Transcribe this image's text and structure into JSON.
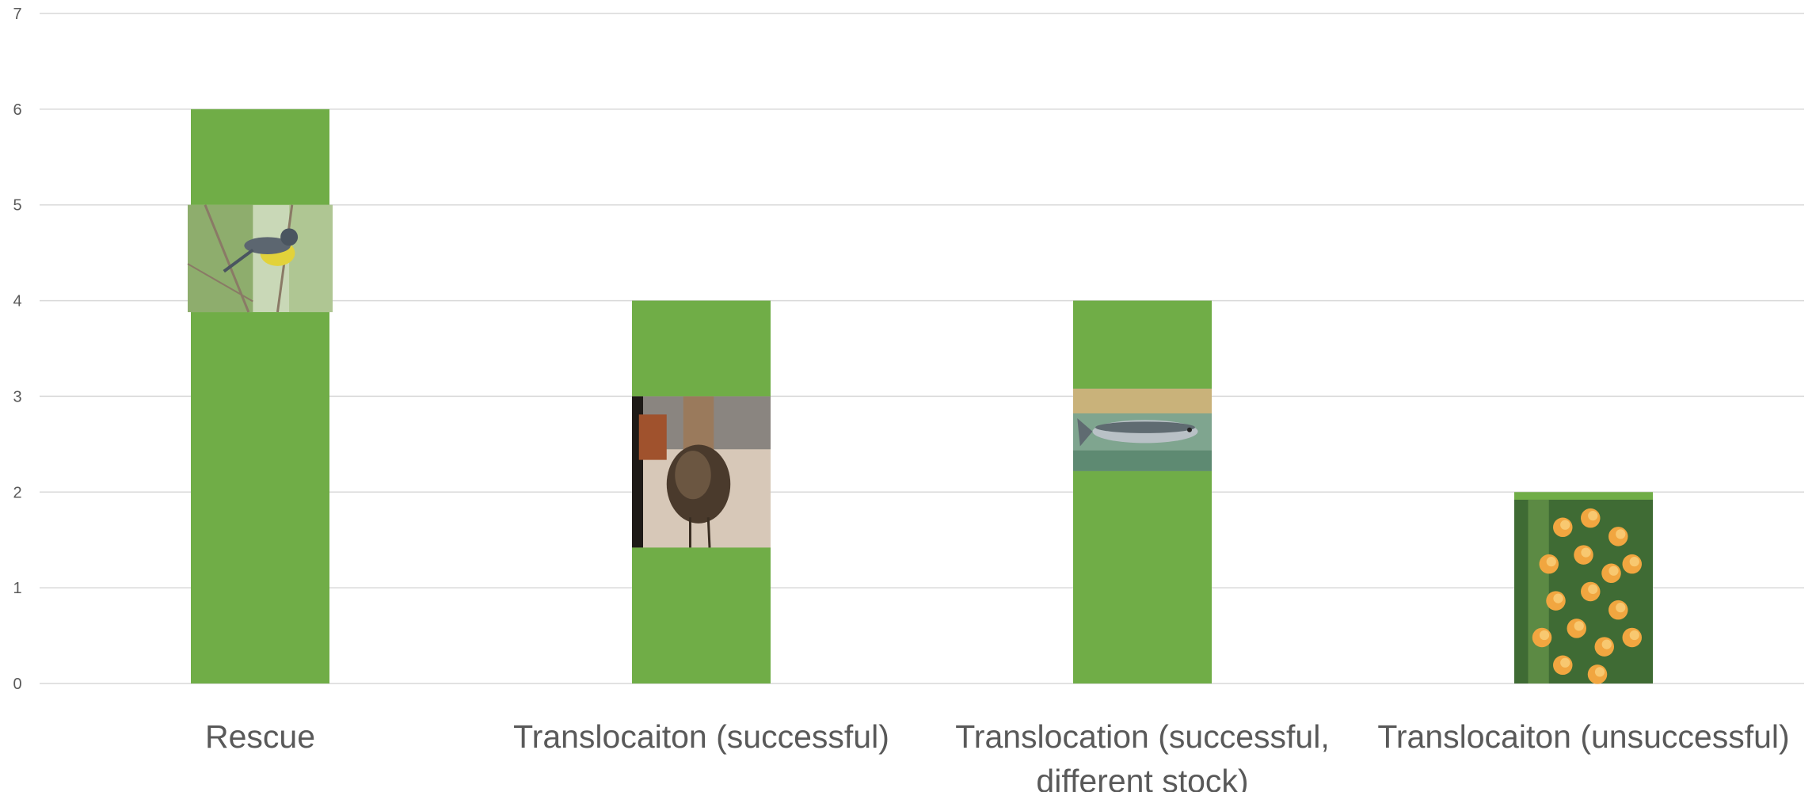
{
  "chart_data": {
    "type": "bar",
    "categories": [
      [
        "Rescue"
      ],
      [
        "Translocaiton (successful)"
      ],
      [
        "Translocation (successful,",
        "different stock)"
      ],
      [
        "Translocaiton (unsuccessful)"
      ]
    ],
    "values": [
      6,
      4,
      4,
      2
    ],
    "ylim": [
      0,
      7
    ],
    "yticks": [
      "0",
      "1",
      "2",
      "3",
      "4",
      "5",
      "6",
      "7"
    ],
    "grid": true,
    "bar_color": "#70AD47",
    "gridline_color": "#D9D9D9",
    "bar_images": [
      "bird-photo",
      "duck-photo",
      "fish-photo",
      "orchid-photo"
    ]
  }
}
